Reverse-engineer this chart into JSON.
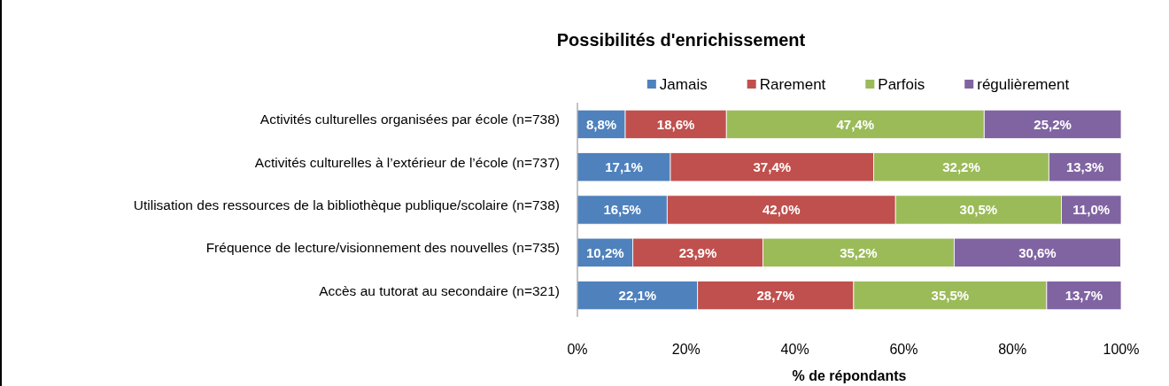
{
  "chart_data": {
    "type": "bar",
    "orientation": "horizontal",
    "stacked": true,
    "title": "Possibilités d'enrichissement",
    "xlabel": "% de répondants",
    "categories": [
      "Activités culturelles organisées par école (n=738)",
      "Activités culturelles à l’extérieur de l’école (n=737)",
      "Utilisation des ressources de la bibliothèque publique/scolaire (n=738)",
      "Fréquence de lecture/visionnement des nouvelles (n=735)",
      "Accès au tutorat au secondaire  (n=321)"
    ],
    "series": [
      {
        "name": "Jamais",
        "color": "#4f81bd",
        "values": [
          8.8,
          17.1,
          16.5,
          10.2,
          22.1
        ],
        "value_labels": [
          "8,8%",
          "17,1%",
          "16,5%",
          "10,2%",
          "22,1%"
        ]
      },
      {
        "name": "Rarement",
        "color": "#c0504d",
        "values": [
          18.6,
          37.4,
          42.0,
          23.9,
          28.7
        ],
        "value_labels": [
          "18,6%",
          "37,4%",
          "42,0%",
          "23,9%",
          "28,7%"
        ]
      },
      {
        "name": "Parfois",
        "color": "#9bbb59",
        "values": [
          47.4,
          32.2,
          30.5,
          35.2,
          35.5
        ],
        "value_labels": [
          "47,4%",
          "32,2%",
          "30,5%",
          "35,2%",
          "35,5%"
        ]
      },
      {
        "name": "régulièrement",
        "color": "#8064a2",
        "values": [
          25.2,
          13.3,
          11.0,
          30.6,
          13.7
        ],
        "value_labels": [
          "25,2%",
          "13,3%",
          "11,0%",
          "30,6%",
          "13,7%"
        ]
      }
    ],
    "xlim": [
      0,
      100
    ],
    "xticks": [
      {
        "value": 0,
        "label": "0%"
      },
      {
        "value": 20,
        "label": "20%"
      },
      {
        "value": 40,
        "label": "40%"
      },
      {
        "value": 60,
        "label": "60%"
      },
      {
        "value": 80,
        "label": "80%"
      },
      {
        "value": 100,
        "label": "100%"
      }
    ],
    "legend": "top",
    "grid": false
  }
}
